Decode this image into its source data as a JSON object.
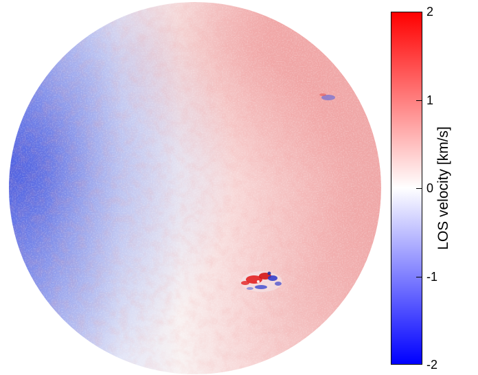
{
  "colorbar": {
    "title": "LOS velocity [km/s]",
    "min": -2,
    "max": 2,
    "colors": {
      "max": "#ff0000",
      "zero": "#ffffff",
      "min": "#0000ff"
    },
    "ticks": [
      {
        "value": 2,
        "label": "2"
      },
      {
        "value": 1,
        "label": "1"
      },
      {
        "value": 0,
        "label": "0"
      },
      {
        "value": -1,
        "label": "-1"
      },
      {
        "value": -2,
        "label": "-2"
      }
    ]
  },
  "image": {
    "subject": "solar-disk-dopplergram"
  }
}
